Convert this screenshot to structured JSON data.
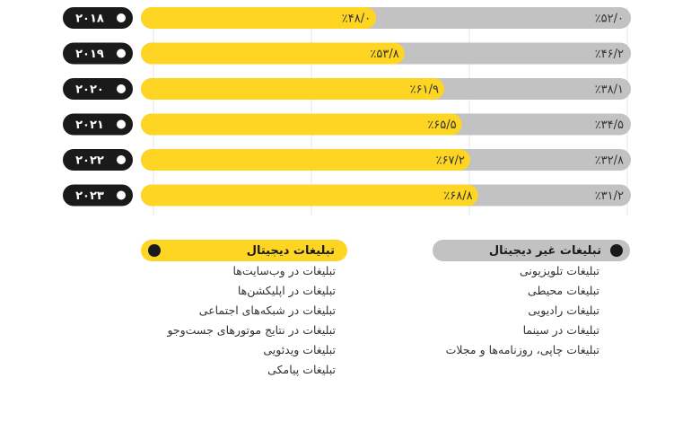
{
  "chart_data": {
    "type": "bar",
    "stacked": true,
    "orientation": "horizontal",
    "categories": [
      "۲۰۱۸",
      "۲۰۱۹",
      "۲۰۲۰",
      "۲۰۲۱",
      "۲۰۲۲",
      "۲۰۲۳"
    ],
    "series": [
      {
        "name": "تبلیغات دیجیتال",
        "values": [
          48.0,
          53.8,
          61.9,
          65.5,
          67.2,
          68.8
        ],
        "labels": [
          "٪۴۸/۰",
          "٪۵۳/۸",
          "٪۶۱/۹",
          "٪۶۵/۵",
          "٪۶۷/۲",
          "٪۶۸/۸"
        ],
        "color": "#FDD522"
      },
      {
        "name": "تبلیغات غیر دیجیتال",
        "values": [
          52.0,
          46.2,
          38.1,
          34.5,
          32.8,
          31.2
        ],
        "labels": [
          "٪۵۲/۰",
          "٪۴۶/۲",
          "٪۳۸/۱",
          "٪۳۴/۵",
          "٪۳۲/۸",
          "٪۳۱/۲"
        ],
        "color": "#C2C2C2"
      }
    ],
    "xlim": [
      0,
      100
    ],
    "grid": true,
    "legend_position": "bottom"
  },
  "colors": {
    "digital": "#FDD522",
    "nondigital": "#C2C2C2",
    "year_pill": "#1A1A1A",
    "year_text": "#FFFFFF",
    "grid": "#E6E6E6"
  },
  "legend": {
    "digital": {
      "title": "تبلیغات دیجیتال",
      "items": [
        "تبلیغات در وب‌سایت‌ها",
        "تبلیغات در اپلیکشن‌ها",
        "تبلیغات در شبکه‌های اجتماعی",
        "تبلیغات در نتایج موتورهای جست‌وجو",
        "تبلیغات ویدئویی",
        "تبلیغات پیامکی"
      ]
    },
    "nondigital": {
      "title": "تبلیغات غیر دیجیتال",
      "items": [
        "تبلیغات تلویزیونی",
        "تبلیغات محیطی",
        "تبلیغات رادیویی",
        "تبلیغات در سینما",
        "تبلیغات چاپی، روزنامه‌ها و مجلات"
      ]
    }
  }
}
